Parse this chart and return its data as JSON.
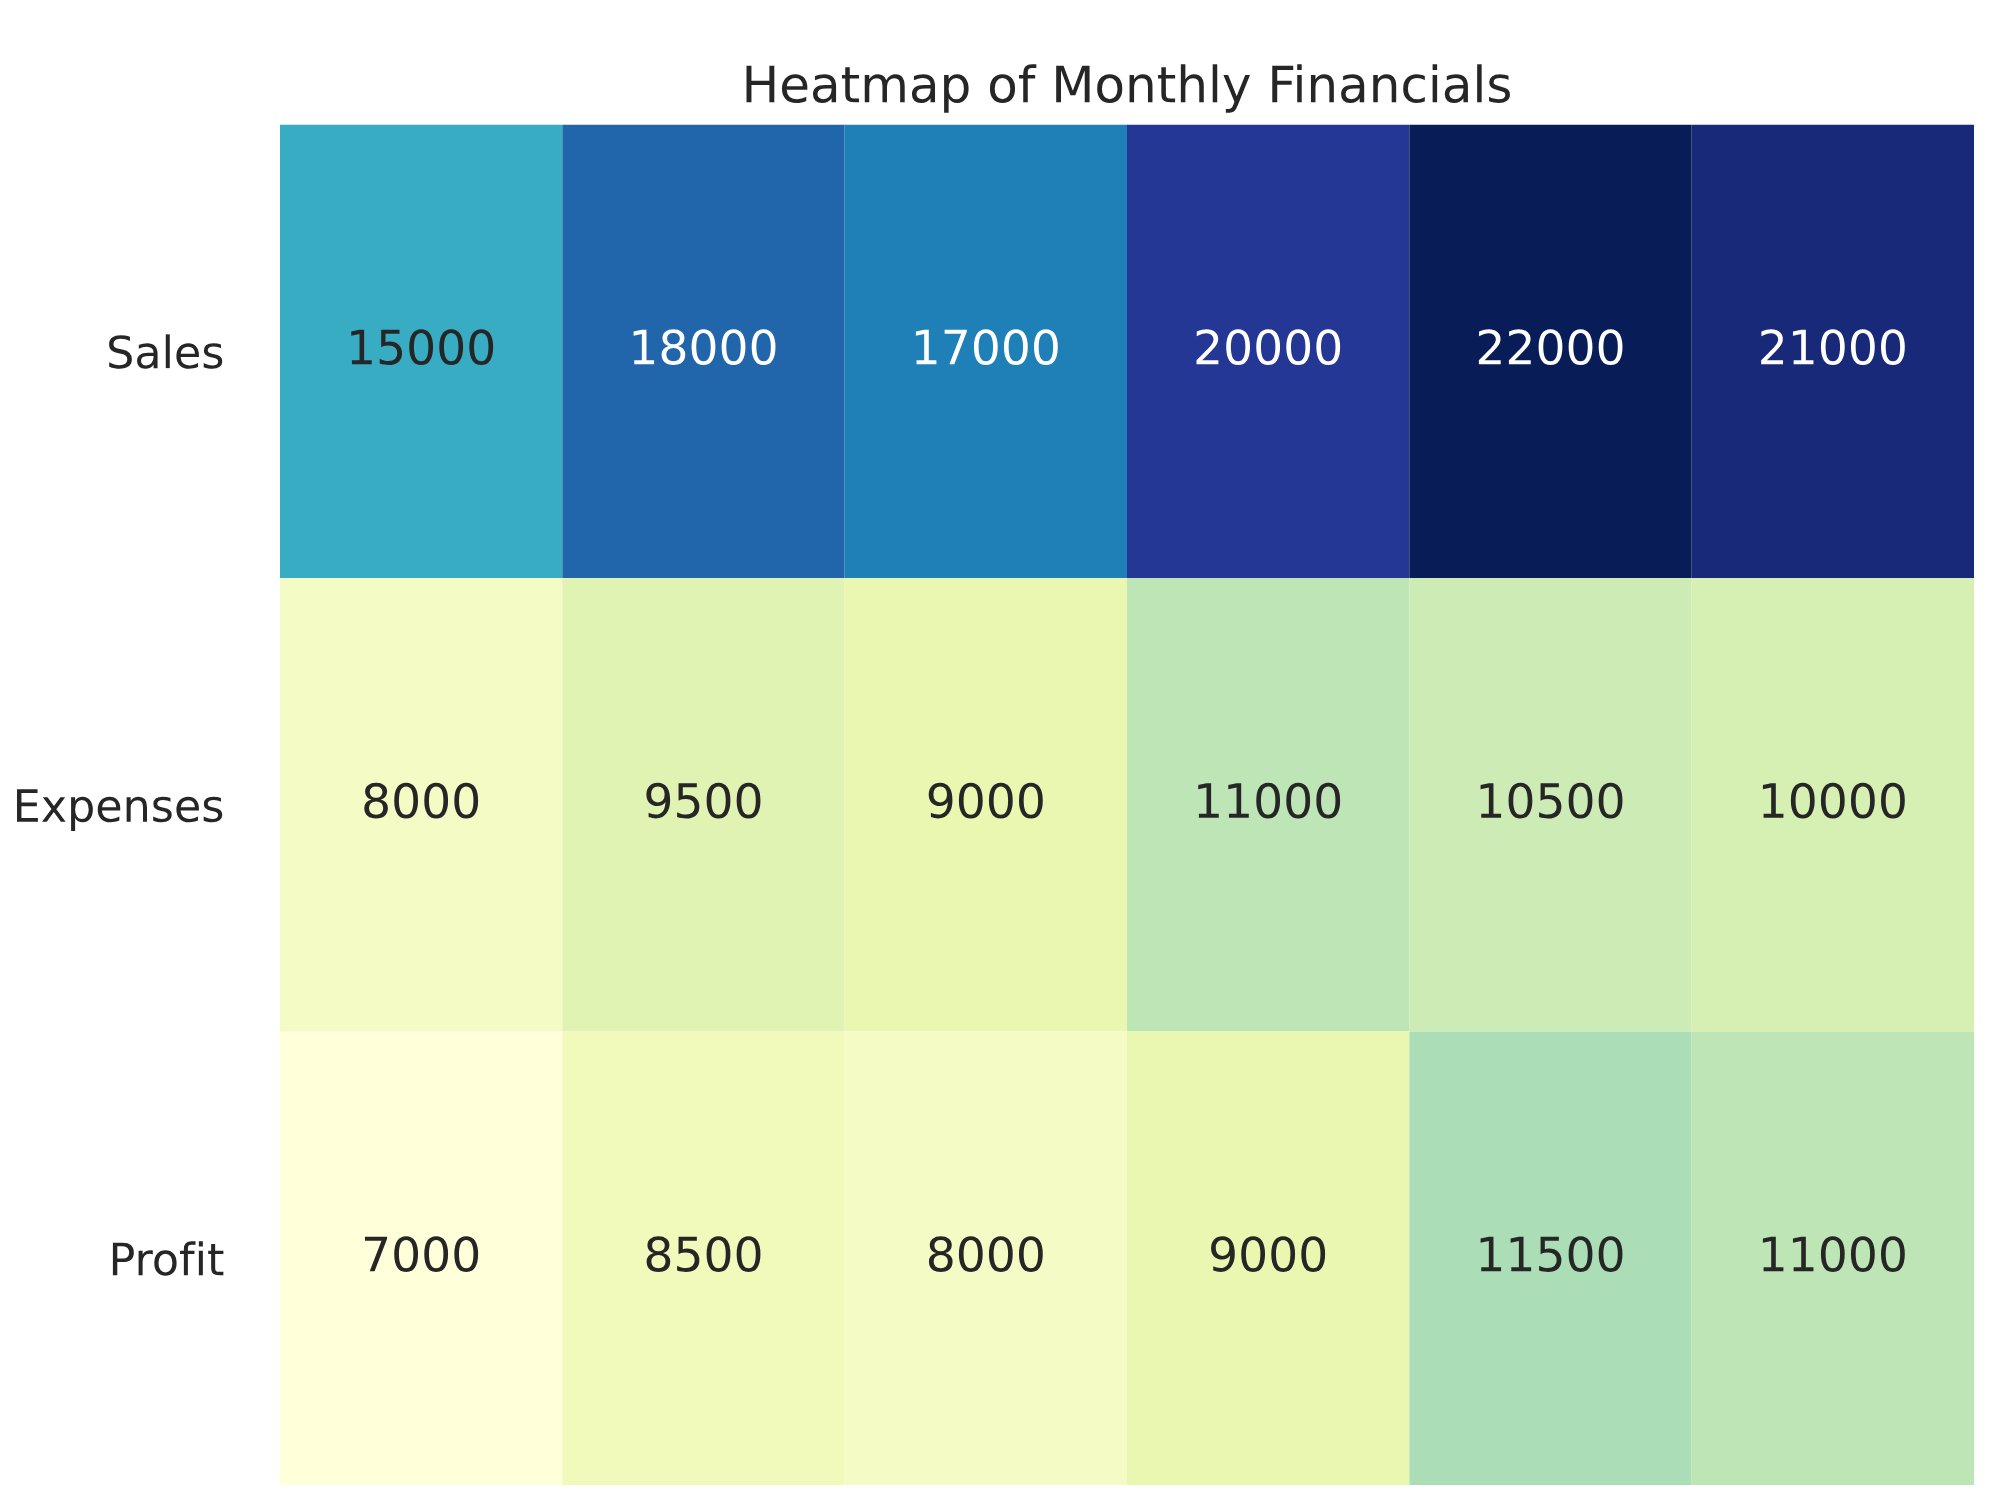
{
  "chart_data": {
    "type": "heatmap",
    "title": "Heatmap of Monthly Financials",
    "categories": [
      null,
      null,
      null,
      null,
      null,
      null
    ],
    "y_categories": [
      "Sales",
      "Expenses",
      "Profit"
    ],
    "cells": [
      [
        15000,
        18000,
        17000,
        20000,
        22000,
        21000
      ],
      [
        8000,
        9500,
        9000,
        11000,
        10500,
        10000
      ],
      [
        7000,
        8500,
        8000,
        9000,
        11500,
        11000
      ]
    ],
    "data_labels": true
  }
}
